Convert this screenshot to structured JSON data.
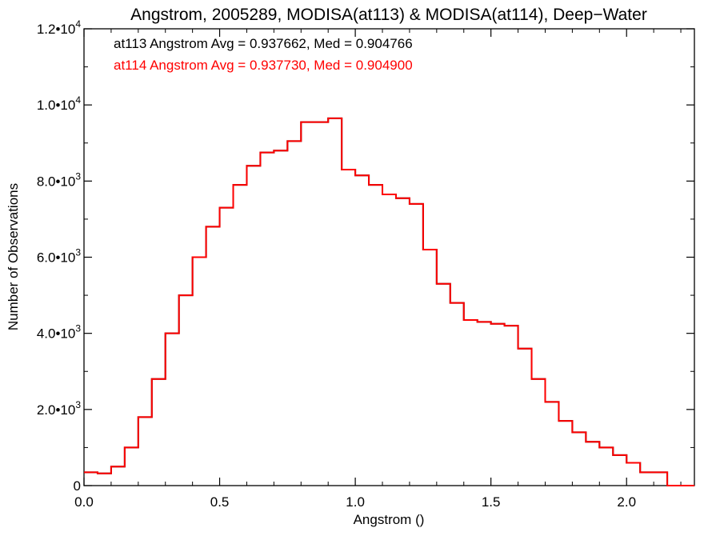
{
  "chart_data": {
    "type": "line",
    "title": "Angstrom, 2005289, MODISA(at113) & MODISA(at114), Deep−Water",
    "xlabel": "Angstrom ()",
    "ylabel": "Number of Observations",
    "xlim": [
      0.0,
      2.25
    ],
    "ylim": [
      0,
      12000
    ],
    "x_ticks": [
      0.0,
      0.5,
      1.0,
      1.5,
      2.0
    ],
    "x_tick_labels": [
      "0.0",
      "0.5",
      "1.0",
      "1.5",
      "2.0"
    ],
    "y_ticks": [
      0,
      2000,
      4000,
      6000,
      8000,
      10000,
      12000
    ],
    "y_tick_labels": [
      "0",
      "2.0•10^3",
      "4.0•10^3",
      "6.0•10^3",
      "8.0•10^3",
      "1.0•10^4",
      "1.2•10^4"
    ],
    "grid": false,
    "legend_position": "top-left",
    "annotations": [
      {
        "text": "at113 Angstrom Avg = 0.937662, Med = 0.904766",
        "color": "#000000"
      },
      {
        "text": "at114 Angstrom Avg = 0.937730, Med = 0.904900",
        "color": "#ff0000"
      }
    ],
    "series_style": "step",
    "series": [
      {
        "name": "at113",
        "color": "#000000",
        "x": [
          0.0,
          0.05,
          0.1,
          0.15,
          0.2,
          0.25,
          0.3,
          0.35,
          0.4,
          0.45,
          0.5,
          0.55,
          0.6,
          0.65,
          0.7,
          0.75,
          0.8,
          0.85,
          0.9,
          0.95,
          1.0,
          1.05,
          1.1,
          1.15,
          1.2,
          1.25,
          1.3,
          1.35,
          1.4,
          1.45,
          1.5,
          1.55,
          1.6,
          1.65,
          1.7,
          1.75,
          1.8,
          1.85,
          1.9,
          1.95,
          2.0,
          2.05,
          2.1,
          2.15,
          2.2,
          2.25
        ],
        "values": [
          350,
          320,
          500,
          1000,
          1800,
          2800,
          4000,
          5000,
          6000,
          6800,
          7300,
          7900,
          8400,
          8750,
          8800,
          9050,
          9550,
          9550,
          9650,
          8300,
          8150,
          7900,
          7650,
          7550,
          7400,
          6200,
          5300,
          4800,
          4350,
          4300,
          4250,
          4200,
          3600,
          2800,
          2200,
          1700,
          1400,
          1150,
          1000,
          800,
          600,
          350,
          350,
          0,
          0,
          0
        ]
      },
      {
        "name": "at114",
        "color": "#ff0000",
        "x": [
          0.0,
          0.05,
          0.1,
          0.15,
          0.2,
          0.25,
          0.3,
          0.35,
          0.4,
          0.45,
          0.5,
          0.55,
          0.6,
          0.65,
          0.7,
          0.75,
          0.8,
          0.85,
          0.9,
          0.95,
          1.0,
          1.05,
          1.1,
          1.15,
          1.2,
          1.25,
          1.3,
          1.35,
          1.4,
          1.45,
          1.5,
          1.55,
          1.6,
          1.65,
          1.7,
          1.75,
          1.8,
          1.85,
          1.9,
          1.95,
          2.0,
          2.05,
          2.1,
          2.15,
          2.2,
          2.25
        ],
        "values": [
          350,
          320,
          500,
          1000,
          1800,
          2800,
          4000,
          5000,
          6000,
          6800,
          7300,
          7900,
          8400,
          8750,
          8800,
          9050,
          9550,
          9550,
          9650,
          8300,
          8150,
          7900,
          7650,
          7550,
          7400,
          6200,
          5300,
          4800,
          4350,
          4300,
          4250,
          4200,
          3600,
          2800,
          2200,
          1700,
          1400,
          1150,
          1000,
          800,
          600,
          350,
          350,
          0,
          0,
          0
        ]
      }
    ]
  }
}
